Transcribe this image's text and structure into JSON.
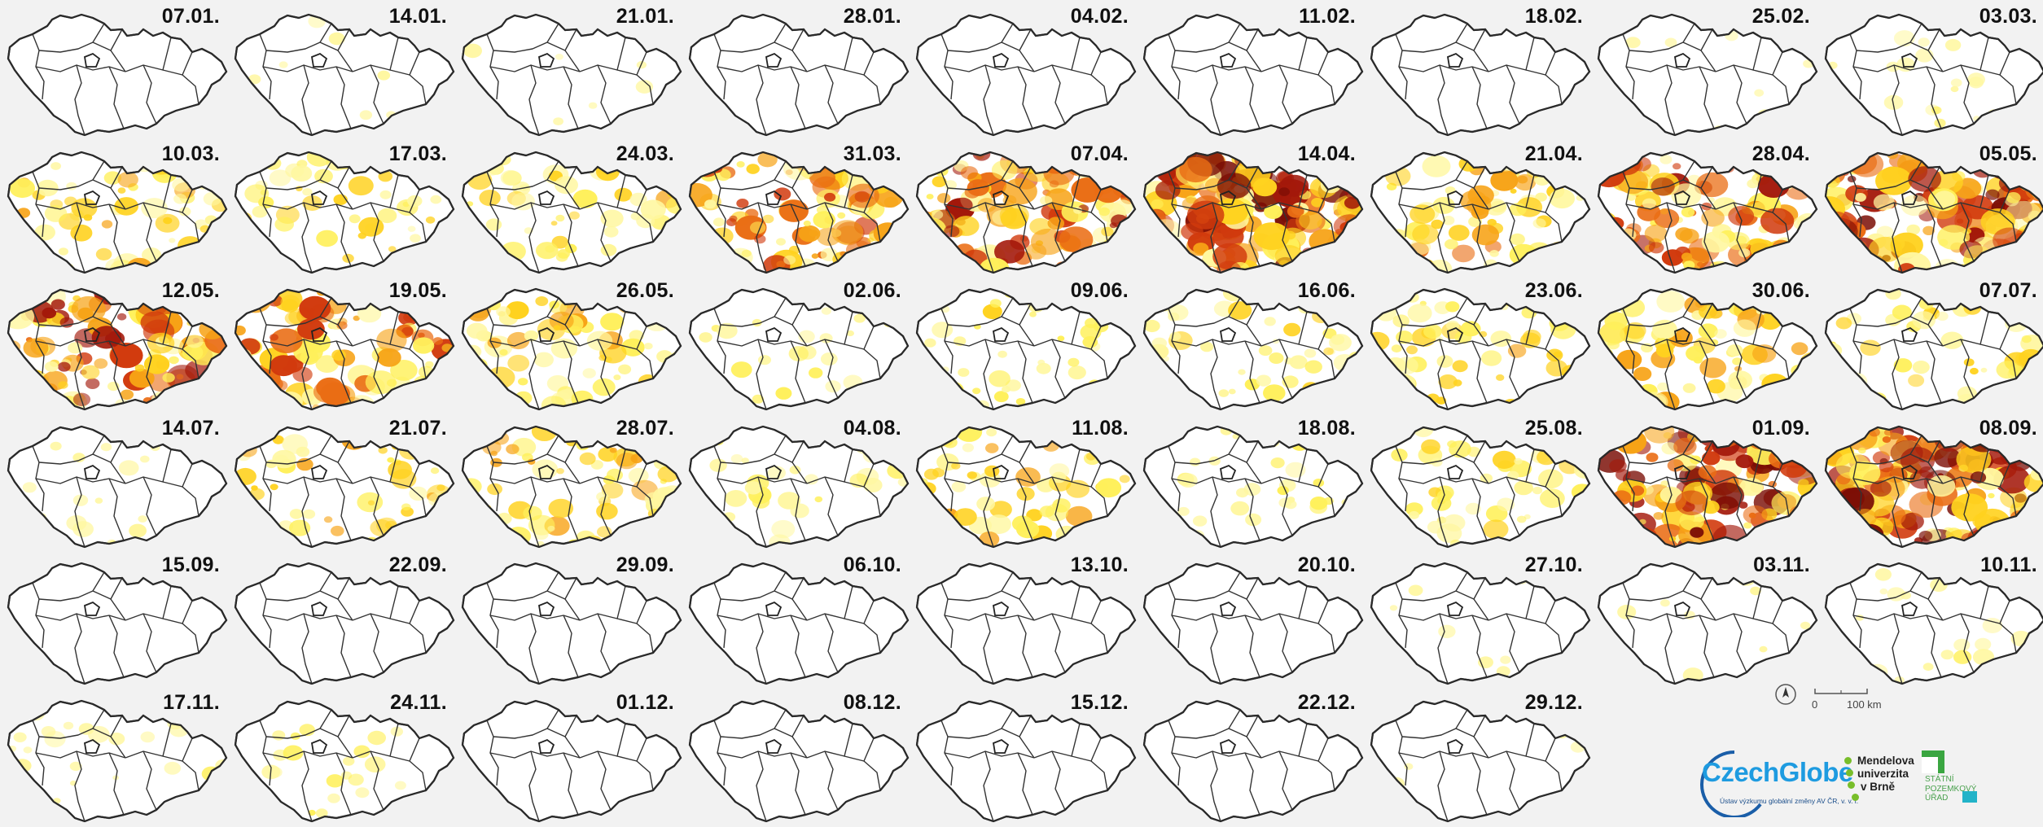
{
  "maps": [
    {
      "date": "07.01.",
      "intensity": 0.0
    },
    {
      "date": "14.01.",
      "intensity": 0.05
    },
    {
      "date": "21.01.",
      "intensity": 0.05
    },
    {
      "date": "28.01.",
      "intensity": 0.0
    },
    {
      "date": "04.02.",
      "intensity": 0.0
    },
    {
      "date": "11.02.",
      "intensity": 0.0
    },
    {
      "date": "18.02.",
      "intensity": 0.0
    },
    {
      "date": "25.02.",
      "intensity": 0.05
    },
    {
      "date": "03.03.",
      "intensity": 0.12
    },
    {
      "date": "10.03.",
      "intensity": 0.4
    },
    {
      "date": "17.03.",
      "intensity": 0.3
    },
    {
      "date": "24.03.",
      "intensity": 0.35
    },
    {
      "date": "31.03.",
      "intensity": 0.65
    },
    {
      "date": "07.04.",
      "intensity": 0.75
    },
    {
      "date": "14.04.",
      "intensity": 0.9
    },
    {
      "date": "21.04.",
      "intensity": 0.45
    },
    {
      "date": "28.04.",
      "intensity": 0.7
    },
    {
      "date": "05.05.",
      "intensity": 0.85
    },
    {
      "date": "12.05.",
      "intensity": 0.75
    },
    {
      "date": "19.05.",
      "intensity": 0.65
    },
    {
      "date": "26.05.",
      "intensity": 0.45
    },
    {
      "date": "02.06.",
      "intensity": 0.15
    },
    {
      "date": "09.06.",
      "intensity": 0.22
    },
    {
      "date": "16.06.",
      "intensity": 0.28
    },
    {
      "date": "23.06.",
      "intensity": 0.35
    },
    {
      "date": "30.06.",
      "intensity": 0.45
    },
    {
      "date": "07.07.",
      "intensity": 0.3
    },
    {
      "date": "14.07.",
      "intensity": 0.12
    },
    {
      "date": "21.07.",
      "intensity": 0.35
    },
    {
      "date": "28.07.",
      "intensity": 0.4
    },
    {
      "date": "04.08.",
      "intensity": 0.22
    },
    {
      "date": "11.08.",
      "intensity": 0.38
    },
    {
      "date": "18.08.",
      "intensity": 0.22
    },
    {
      "date": "25.08.",
      "intensity": 0.3
    },
    {
      "date": "01.09.",
      "intensity": 0.8
    },
    {
      "date": "08.09.",
      "intensity": 0.85
    },
    {
      "date": "15.09.",
      "intensity": 0.0
    },
    {
      "date": "22.09.",
      "intensity": 0.0
    },
    {
      "date": "29.09.",
      "intensity": 0.0
    },
    {
      "date": "06.10.",
      "intensity": 0.0
    },
    {
      "date": "13.10.",
      "intensity": 0.0
    },
    {
      "date": "20.10.",
      "intensity": 0.0
    },
    {
      "date": "27.10.",
      "intensity": 0.04
    },
    {
      "date": "03.11.",
      "intensity": 0.06
    },
    {
      "date": "10.11.",
      "intensity": 0.12
    },
    {
      "date": "17.11.",
      "intensity": 0.14
    },
    {
      "date": "24.11.",
      "intensity": 0.14
    },
    {
      "date": "01.12.",
      "intensity": 0.0
    },
    {
      "date": "08.12.",
      "intensity": 0.0
    },
    {
      "date": "15.12.",
      "intensity": 0.0
    },
    {
      "date": "22.12.",
      "intensity": 0.0
    },
    {
      "date": "29.12.",
      "intensity": 0.04
    }
  ],
  "scalebar": {
    "zero": "0",
    "distance": "100 km"
  },
  "logos": {
    "czechglobe": {
      "name": "CzechGlobe",
      "subtitle": "Ústav výzkumu globální změny AV ČR, v. v. i."
    },
    "mendelu": {
      "line1": "Mendelova",
      "line2": "univerzita",
      "line3": "v Brně"
    },
    "spu": {
      "line1": "STÁTNÍ",
      "line2": "POZEMKOVÝ",
      "line3": "ÚŘAD"
    }
  },
  "colors": {
    "low": "#fff36a",
    "mid": "#f8c11a",
    "high": "#e86a12",
    "max": "#8c1208",
    "background": "#f2f2f2"
  }
}
